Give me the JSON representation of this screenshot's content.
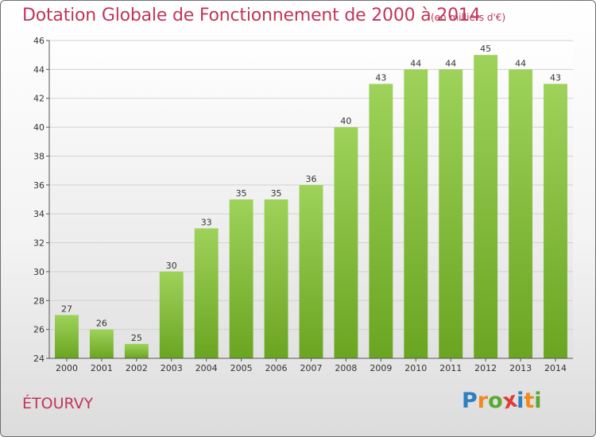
{
  "header": {
    "title": "Dotation Globale de Fonctionnement de 2000 à 2014",
    "subtitle": "(en milliers d'€)"
  },
  "commune": "ÉTOURVY",
  "logo": {
    "text": "Proxiti",
    "letters": [
      "P",
      "r",
      "o",
      "x",
      "i",
      "t",
      "i"
    ],
    "colors": [
      "#2e7fc2",
      "#f08a1e",
      "#5aa832",
      "#e03a3a",
      "#2e7fc2",
      "#f08a1e",
      "#5aa832"
    ]
  },
  "colors": {
    "bar_top": "#9ed25a",
    "bar_bottom": "#6aa521",
    "text_accent": "#c0355a"
  },
  "chart_data": {
    "type": "bar",
    "title": "Dotation Globale de Fonctionnement de 2000 à 2014",
    "subtitle": "(en milliers d'€)",
    "xlabel": "",
    "ylabel": "",
    "categories": [
      "2000",
      "2001",
      "2002",
      "2003",
      "2004",
      "2005",
      "2006",
      "2007",
      "2008",
      "2009",
      "2010",
      "2011",
      "2012",
      "2013",
      "2014"
    ],
    "values": [
      27,
      26,
      25,
      30,
      33,
      35,
      35,
      36,
      40,
      43,
      44,
      44,
      45,
      44,
      43
    ],
    "ylim": [
      24,
      46
    ],
    "yticks": [
      24,
      26,
      28,
      30,
      32,
      34,
      36,
      38,
      40,
      42,
      44,
      46
    ],
    "grid": true,
    "data_labels": true
  }
}
